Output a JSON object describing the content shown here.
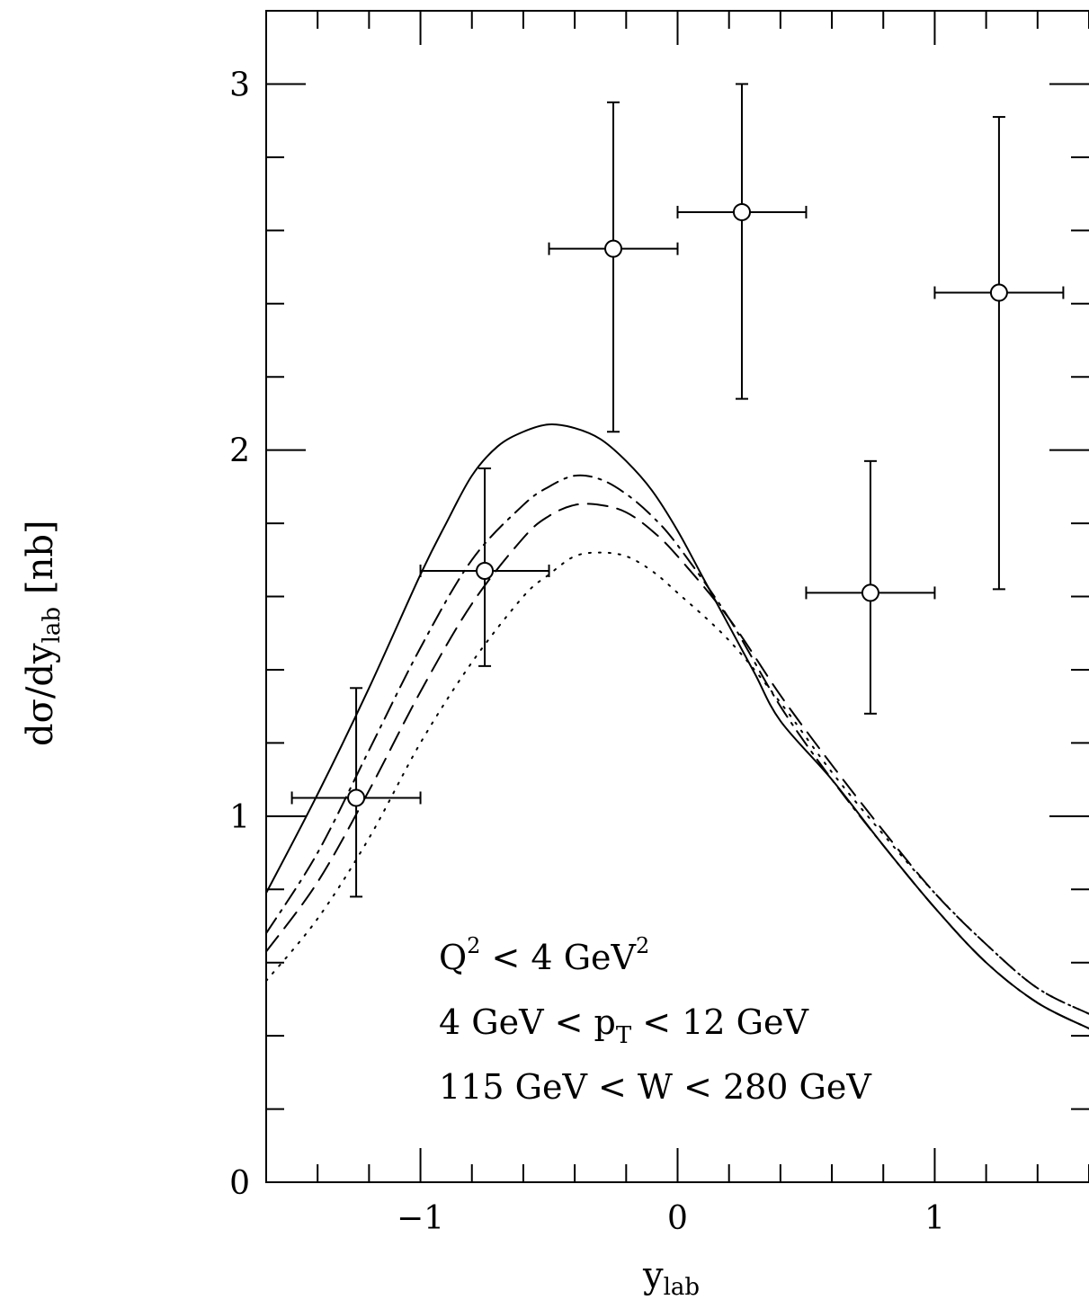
{
  "chart_data": {
    "type": "scatter",
    "xlabel": "y",
    "xlabel_sub": "lab",
    "ylabel": "dσ/dy",
    "ylabel_sub": "lab",
    "ylabel_unit": "[nb]",
    "xlim": [
      -1.6,
      1.6
    ],
    "ylim": [
      0,
      3.2
    ],
    "x_ticks": [
      -1,
      0,
      1
    ],
    "x_tick_labels": [
      "−1",
      "0",
      "1"
    ],
    "y_ticks": [
      0,
      1,
      2,
      3
    ],
    "y_tick_labels": [
      "0",
      "1",
      "2",
      "3"
    ],
    "grid": false,
    "legend": "none",
    "annotations": [
      {
        "parts": [
          {
            "t": "Q"
          },
          {
            "t": "2",
            "sup": true
          },
          {
            "t": " < 4 GeV"
          },
          {
            "t": "2",
            "sup": true
          }
        ]
      },
      {
        "parts": [
          {
            "t": "4 GeV < p"
          },
          {
            "t": "T",
            "sub": true
          },
          {
            "t": " < 12 GeV"
          }
        ]
      },
      {
        "parts": [
          {
            "t": "115 GeV < W < 280 GeV"
          }
        ]
      }
    ],
    "data_points": [
      {
        "x": -1.25,
        "x_low": -1.5,
        "x_high": -1.0,
        "y": 1.05,
        "y_low": 0.78,
        "y_high": 1.35
      },
      {
        "x": -0.75,
        "x_low": -1.0,
        "x_high": -0.5,
        "y": 1.67,
        "y_low": 1.41,
        "y_high": 1.95
      },
      {
        "x": -0.25,
        "x_low": -0.5,
        "x_high": 0.0,
        "y": 2.55,
        "y_low": 2.05,
        "y_high": 2.95
      },
      {
        "x": 0.25,
        "x_low": 0.0,
        "x_high": 0.5,
        "y": 2.65,
        "y_low": 2.14,
        "y_high": 3.0
      },
      {
        "x": 0.75,
        "x_low": 0.5,
        "x_high": 1.0,
        "y": 1.61,
        "y_low": 1.28,
        "y_high": 1.97
      },
      {
        "x": 1.25,
        "x_low": 1.0,
        "x_high": 1.5,
        "y": 2.43,
        "y_low": 1.62,
        "y_high": 2.91
      }
    ],
    "series": [
      {
        "style": "solid",
        "x": [
          -1.6,
          -1.4,
          -1.2,
          -1.0,
          -0.9,
          -0.8,
          -0.7,
          -0.6,
          -0.5,
          -0.4,
          -0.3,
          -0.2,
          -0.1,
          0.0,
          0.1,
          0.2,
          0.3,
          0.4,
          0.6,
          0.8,
          1.0,
          1.2,
          1.4,
          1.6
        ],
        "y": [
          0.79,
          1.06,
          1.35,
          1.66,
          1.8,
          1.93,
          2.01,
          2.05,
          2.07,
          2.06,
          2.03,
          1.97,
          1.89,
          1.78,
          1.65,
          1.52,
          1.39,
          1.26,
          1.1,
          0.92,
          0.75,
          0.6,
          0.49,
          0.42
        ]
      },
      {
        "style": "dashdot",
        "x": [
          -1.6,
          -1.4,
          -1.2,
          -1.0,
          -0.8,
          -0.6,
          -0.5,
          -0.4,
          -0.3,
          -0.2,
          -0.1,
          0.0,
          0.2,
          0.4,
          0.6,
          0.8,
          1.0,
          1.2,
          1.4,
          1.6
        ],
        "y": [
          0.68,
          0.9,
          1.18,
          1.46,
          1.7,
          1.85,
          1.9,
          1.93,
          1.92,
          1.88,
          1.82,
          1.74,
          1.54,
          1.3,
          1.1,
          0.92,
          0.75,
          0.6,
          0.49,
          0.42
        ]
      },
      {
        "style": "dashed",
        "x": [
          -1.6,
          -1.4,
          -1.2,
          -1.0,
          -0.8,
          -0.6,
          -0.5,
          -0.4,
          -0.3,
          -0.2,
          -0.1,
          0.0,
          0.2,
          0.4,
          0.6,
          0.8,
          1.0,
          1.2,
          1.4,
          1.6
        ],
        "y": [
          0.63,
          0.82,
          1.07,
          1.34,
          1.58,
          1.76,
          1.82,
          1.85,
          1.85,
          1.83,
          1.78,
          1.71,
          1.54,
          1.33,
          1.14,
          0.96,
          0.79,
          0.65,
          0.53,
          0.46
        ]
      },
      {
        "style": "dotted",
        "x": [
          -1.6,
          -1.4,
          -1.2,
          -1.0,
          -0.8,
          -0.6,
          -0.5,
          -0.4,
          -0.3,
          -0.2,
          -0.1,
          0.0,
          0.2,
          0.4,
          0.6,
          0.8,
          1.0,
          1.2,
          1.4,
          1.6
        ],
        "y": [
          0.55,
          0.72,
          0.94,
          1.2,
          1.42,
          1.6,
          1.66,
          1.71,
          1.72,
          1.71,
          1.67,
          1.61,
          1.48,
          1.31,
          1.12,
          0.95,
          0.79,
          0.65,
          0.53,
          0.46
        ]
      }
    ]
  }
}
